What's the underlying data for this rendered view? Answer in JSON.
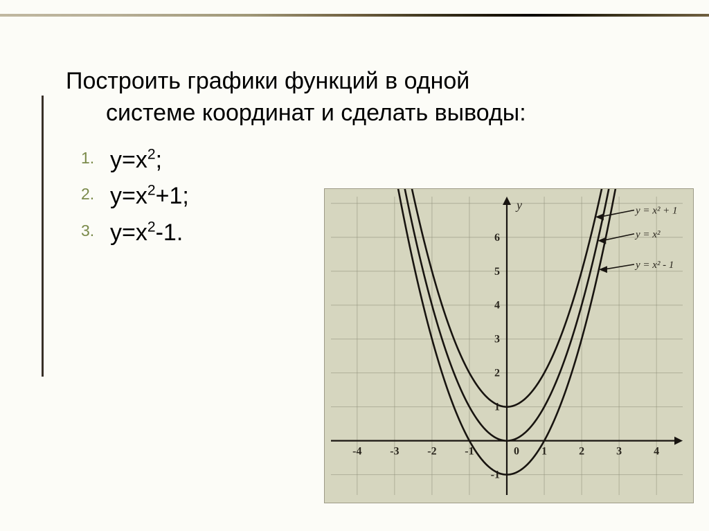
{
  "task_text": "Построить графики функций в одной системе координат и сделать выводы:",
  "functions": [
    {
      "label_html": "у=х<sup>2</sup>;"
    },
    {
      "label_html": "у=х<sup>2</sup>+1;"
    },
    {
      "label_html": "у=х<sup>2</sup>-1."
    }
  ],
  "chart": {
    "type": "line",
    "background_color": "#d8d8c2",
    "paper_tint": "#d0cfb7",
    "grid_color": "#8f8f7a",
    "axis_color": "#181410",
    "curve_color": "#181410",
    "label_color": "#2a261e",
    "xlim": [
      -4.7,
      4.7
    ],
    "ylim": [
      -1.6,
      7.2
    ],
    "xticks": [
      -4,
      -3,
      -2,
      -1,
      0,
      1,
      2,
      3,
      4
    ],
    "yticks": [
      -1,
      1,
      2,
      3,
      4,
      5,
      6
    ],
    "axis_label_y": "y",
    "curve_width": 2.6,
    "axis_width": 2.2,
    "tick_fontsize": 16,
    "callout_fontsize": 15,
    "series": [
      {
        "shift": 1,
        "callout": "y = x² + 1"
      },
      {
        "shift": 0,
        "callout": "y = x²"
      },
      {
        "shift": -1,
        "callout": "y = x² - 1"
      }
    ]
  },
  "colors": {
    "slide_bg": "#fcfcf7",
    "list_number": "#7a8a4a",
    "vertical_rule": "#383028"
  }
}
